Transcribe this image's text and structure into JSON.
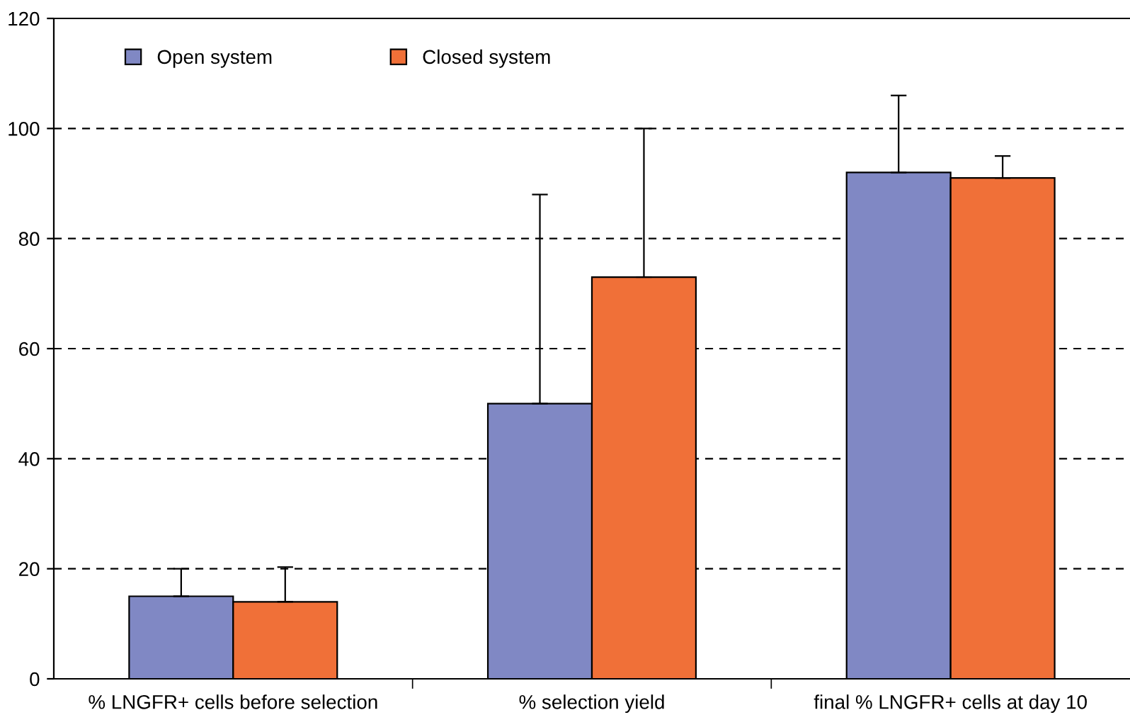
{
  "chart_data": {
    "type": "bar",
    "categories": [
      "% LNGFR+ cells before selection",
      "% selection yield",
      "final % LNGFR+ cells at day 10"
    ],
    "series": [
      {
        "name": "Open system",
        "color": "#8088c4",
        "values": [
          15,
          50,
          92
        ],
        "errors": [
          [
            15,
            20
          ],
          [
            50,
            88
          ],
          [
            92,
            106
          ]
        ]
      },
      {
        "name": "Closed system",
        "color": "#f07038",
        "values": [
          14,
          73,
          91
        ],
        "errors": [
          [
            14,
            20.3
          ],
          [
            73,
            100
          ],
          [
            91,
            95
          ]
        ]
      }
    ],
    "ylim": [
      0,
      120
    ],
    "yticks": [
      0,
      20,
      40,
      60,
      80,
      100,
      120
    ],
    "grid": "y",
    "legend": "top left"
  }
}
